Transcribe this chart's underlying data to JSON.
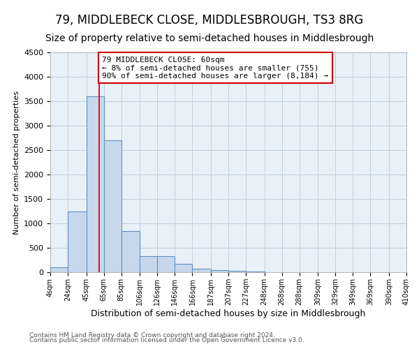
{
  "title": "79, MIDDLEBECK CLOSE, MIDDLESBROUGH, TS3 8RG",
  "subtitle": "Size of property relative to semi-detached houses in Middlesbrough",
  "xlabel": "Distribution of semi-detached houses by size in Middlesbrough",
  "ylabel": "Number of semi-detached properties",
  "footnote1": "Contains HM Land Registry data © Crown copyright and database right 2024.",
  "footnote2": "Contains public sector information licensed under the Open Government Licence v3.0.",
  "bar_color": "#c8d8ec",
  "bar_edge_color": "#6090c0",
  "grid_color": "#c0cfe0",
  "red_line_color": "#dd0000",
  "annotation_box_edge_color": "#cc0000",
  "annotation_text_line1": "79 MIDDLEBECK CLOSE: 60sqm",
  "annotation_text_line2": "← 8% of semi-detached houses are smaller (755)",
  "annotation_text_line3": "90% of semi-detached houses are larger (8,184) →",
  "property_size": 60,
  "bin_edges": [
    4,
    24,
    45,
    65,
    85,
    106,
    126,
    146,
    166,
    187,
    207,
    227,
    248,
    268,
    288,
    309,
    329,
    349,
    369,
    390,
    410
  ],
  "categories": [
    "4sqm",
    "24sqm",
    "45sqm",
    "65sqm",
    "85sqm",
    "106sqm",
    "126sqm",
    "146sqm",
    "166sqm",
    "187sqm",
    "207sqm",
    "227sqm",
    "248sqm",
    "268sqm",
    "288sqm",
    "309sqm",
    "329sqm",
    "349sqm",
    "369sqm",
    "390sqm",
    "410sqm"
  ],
  "values": [
    100,
    1250,
    3600,
    2700,
    850,
    330,
    330,
    170,
    70,
    50,
    30,
    15,
    0,
    0,
    0,
    0,
    0,
    0,
    0,
    0
  ],
  "ylim": [
    0,
    4500
  ],
  "yticks": [
    0,
    500,
    1000,
    1500,
    2000,
    2500,
    3000,
    3500,
    4000,
    4500
  ],
  "plot_bg_color": "#e8f0f8",
  "fig_bg_color": "#ffffff",
  "title_fontsize": 12,
  "subtitle_fontsize": 10,
  "ylabel_fontsize": 8,
  "xlabel_fontsize": 9,
  "tick_fontsize": 8,
  "xtick_fontsize": 7,
  "footnote_fontsize": 6.5,
  "annotation_fontsize": 8
}
